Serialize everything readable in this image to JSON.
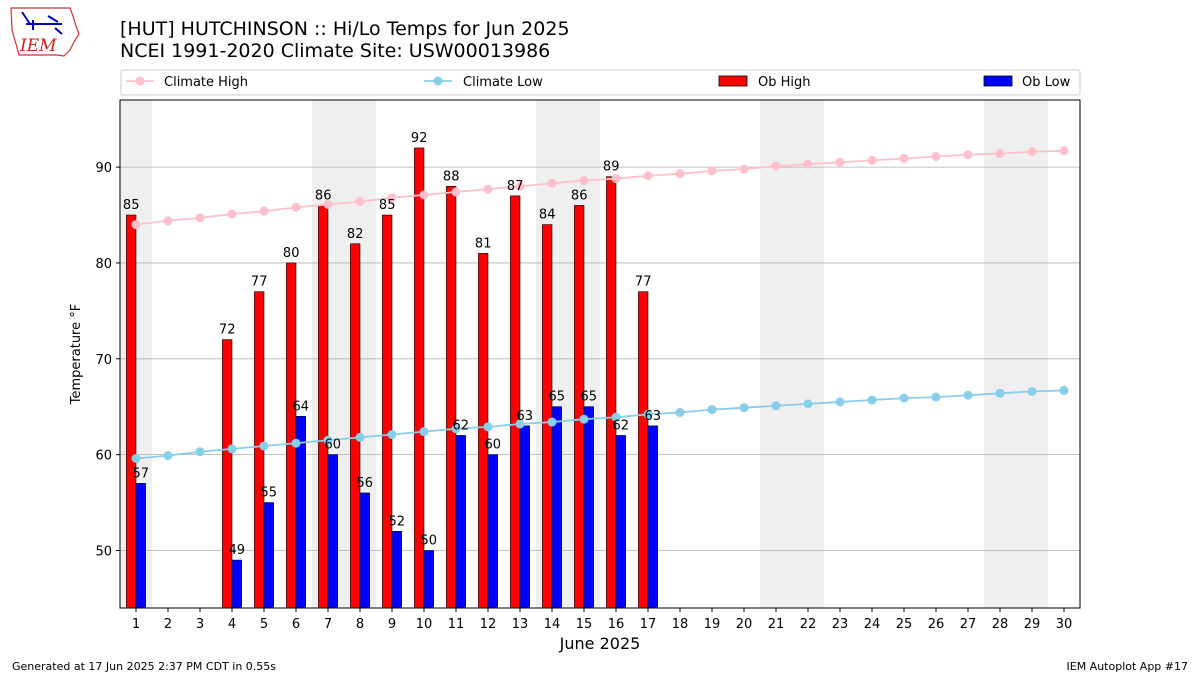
{
  "header": {
    "title_line1": "[HUT] HUTCHINSON :: Hi/Lo Temps for Jun 2025",
    "title_line2": "NCEI 1991-2020 Climate Site: USW00013986"
  },
  "logo": {
    "text": "IEM"
  },
  "footer": {
    "left": "Generated at 17 Jun 2025 2:37 PM CDT in 0.55s",
    "right": "IEM Autoplot App #17"
  },
  "legend": {
    "placement": "top",
    "items": [
      {
        "label": "Climate High",
        "kind": "line",
        "color": "#ffc0cb"
      },
      {
        "label": "Climate Low",
        "kind": "line",
        "color": "#87ceeb"
      },
      {
        "label": "Ob High",
        "kind": "bar",
        "color": "#ff0000"
      },
      {
        "label": "Ob Low",
        "kind": "bar",
        "color": "#0000ff"
      }
    ]
  },
  "colors": {
    "ob_high": "#ff0000",
    "ob_low": "#0000ff",
    "climate_high": "#ffc0cb",
    "climate_low": "#87ceeb",
    "weekend_shade": "#efefef",
    "grid": "#b0b0b0"
  },
  "chart_data": {
    "type": "bar",
    "title": "[HUT] HUTCHINSON :: Hi/Lo Temps for Jun 2025",
    "subtitle": "NCEI 1991-2020 Climate Site: USW00013986",
    "xlabel": "June 2025",
    "ylabel": "Temperature °F",
    "ylim": [
      44,
      97
    ],
    "xlim": [
      0.5,
      30.5
    ],
    "yticks": [
      50,
      60,
      70,
      80,
      90
    ],
    "grid": "y",
    "weekend_days": [
      1,
      7,
      8,
      14,
      15,
      21,
      22,
      28,
      29
    ],
    "days": [
      1,
      2,
      3,
      4,
      5,
      6,
      7,
      8,
      9,
      10,
      11,
      12,
      13,
      14,
      15,
      16,
      17,
      18,
      19,
      20,
      21,
      22,
      23,
      24,
      25,
      26,
      27,
      28,
      29,
      30
    ],
    "series": [
      {
        "name": "Ob High",
        "kind": "bar",
        "color": "#ff0000",
        "values": [
          85,
          null,
          null,
          72,
          77,
          80,
          86,
          82,
          85,
          92,
          88,
          81,
          87,
          84,
          86,
          89,
          77,
          null,
          null,
          null,
          null,
          null,
          null,
          null,
          null,
          null,
          null,
          null,
          null,
          null
        ]
      },
      {
        "name": "Ob Low",
        "kind": "bar",
        "color": "#0000ff",
        "values": [
          57,
          null,
          null,
          49,
          55,
          64,
          60,
          56,
          52,
          50,
          62,
          60,
          63,
          65,
          65,
          62,
          63,
          null,
          null,
          null,
          null,
          null,
          null,
          null,
          null,
          null,
          null,
          null,
          null,
          null
        ]
      },
      {
        "name": "Climate High",
        "kind": "line",
        "color": "#ffc0cb",
        "values": [
          84.0,
          84.4,
          84.7,
          85.1,
          85.4,
          85.8,
          86.1,
          86.4,
          86.8,
          87.1,
          87.4,
          87.7,
          88.0,
          88.3,
          88.6,
          88.8,
          89.1,
          89.3,
          89.6,
          89.8,
          90.1,
          90.3,
          90.5,
          90.7,
          90.9,
          91.1,
          91.3,
          91.4,
          91.6,
          91.7
        ]
      },
      {
        "name": "Climate Low",
        "kind": "line",
        "color": "#87ceeb",
        "values": [
          59.6,
          59.9,
          60.3,
          60.6,
          60.9,
          61.2,
          61.5,
          61.8,
          62.1,
          62.4,
          62.7,
          62.9,
          63.2,
          63.4,
          63.7,
          63.9,
          64.2,
          64.4,
          64.7,
          64.9,
          65.1,
          65.3,
          65.5,
          65.7,
          65.9,
          66.0,
          66.2,
          66.4,
          66.6,
          66.7
        ]
      }
    ]
  }
}
